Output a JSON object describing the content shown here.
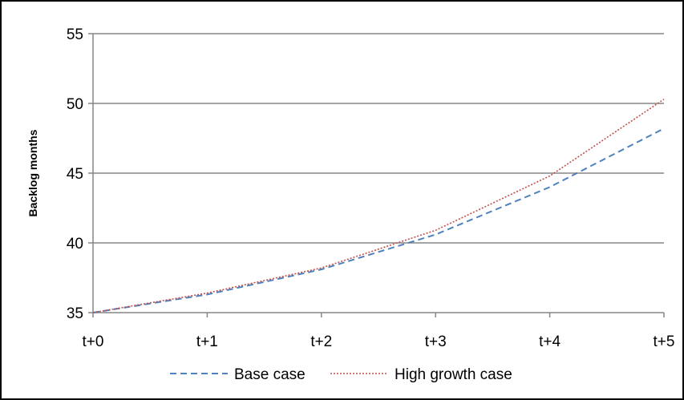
{
  "chart_data": {
    "type": "line",
    "title": "",
    "xlabel": "",
    "ylabel": "Backlog months",
    "categories": [
      "t+0",
      "t+1",
      "t+2",
      "t+3",
      "t+4",
      "t+5"
    ],
    "ylim": [
      35,
      55
    ],
    "yticks": [
      35,
      40,
      45,
      50,
      55
    ],
    "grid": "horizontal",
    "legend": "bottom",
    "series": [
      {
        "name": "Base case",
        "values": [
          35.0,
          36.3,
          38.1,
          40.6,
          44.0,
          48.2
        ],
        "color": "#4F81BD",
        "style": "dashed"
      },
      {
        "name": "High growth case",
        "values": [
          35.0,
          36.4,
          38.2,
          40.9,
          44.8,
          50.3
        ],
        "color": "#C0504D",
        "style": "dotted"
      }
    ]
  }
}
